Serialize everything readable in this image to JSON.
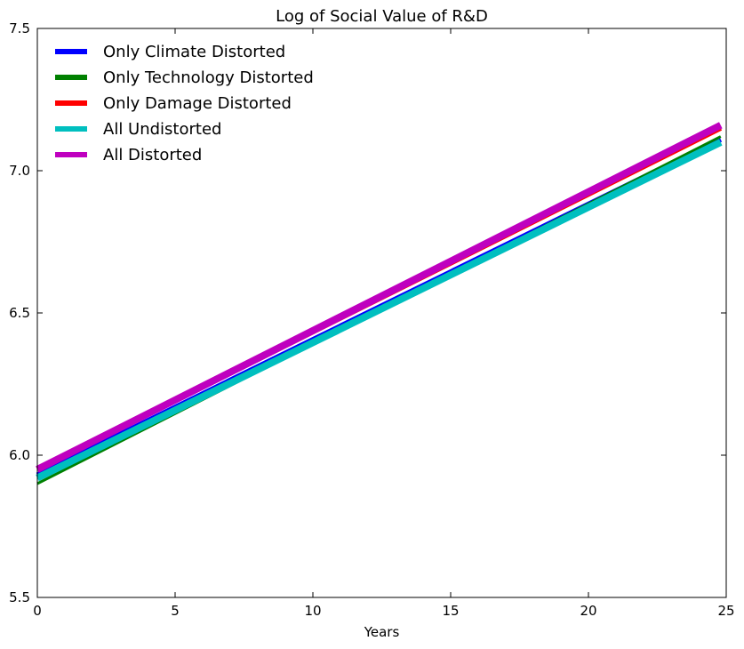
{
  "chart_data": {
    "type": "line",
    "title": "Log of Social Value of R&D",
    "xlabel": "Years",
    "ylabel": "",
    "xlim": [
      0,
      25
    ],
    "ylim": [
      5.5,
      7.5
    ],
    "xticks": [
      "0",
      "5",
      "10",
      "15",
      "20",
      "25"
    ],
    "yticks": [
      "5.5",
      "6.0",
      "6.5",
      "7.0",
      "7.5"
    ],
    "grid": false,
    "legend_position": "top-left",
    "x": [
      0,
      24.8
    ],
    "series": [
      {
        "name": "Only Climate Distorted",
        "color": "#0000ff",
        "values": [
          5.93,
          7.11
        ]
      },
      {
        "name": "Only Technology Distorted",
        "color": "#008000",
        "values": [
          5.9,
          7.12
        ]
      },
      {
        "name": "Only Damage Distorted",
        "color": "#ff0000",
        "values": [
          5.95,
          7.15
        ]
      },
      {
        "name": "All Undistorted",
        "color": "#00bfbf",
        "values": [
          5.92,
          7.1
        ]
      },
      {
        "name": "All Distorted",
        "color": "#bf00bf",
        "values": [
          5.95,
          7.16
        ]
      }
    ]
  }
}
